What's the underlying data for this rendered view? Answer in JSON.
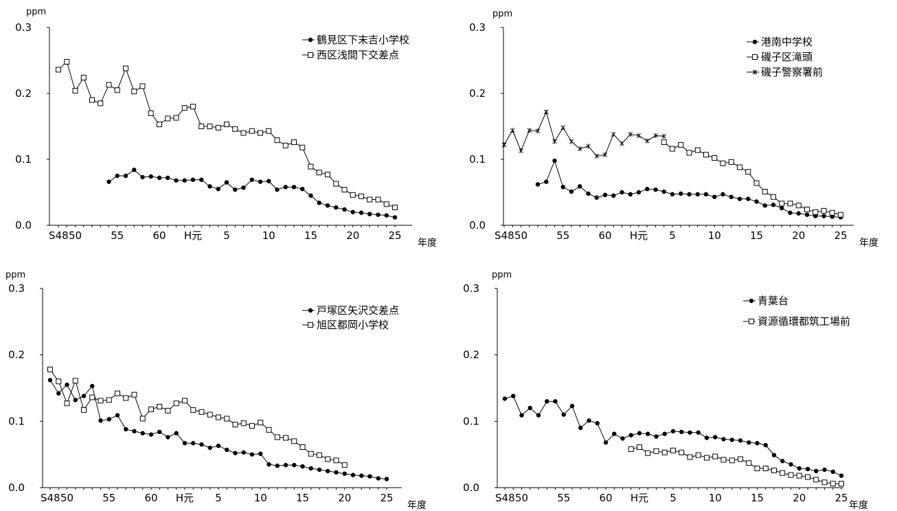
{
  "chart_data": [
    {
      "type": "line",
      "unit_label": "ppm",
      "x_unit_label": "年度",
      "ylim": [
        0,
        0.3
      ],
      "yticks": [
        "0.0",
        "0.1",
        "0.2",
        "0.3"
      ],
      "xticks": [
        {
          "x": 48,
          "label": "S48"
        },
        {
          "x": 50,
          "label": "50"
        },
        {
          "x": 55,
          "label": "55"
        },
        {
          "x": 60,
          "label": "60"
        },
        {
          "x": 64,
          "label": "H元"
        },
        {
          "x": 68,
          "label": "5"
        },
        {
          "x": 73,
          "label": "10"
        },
        {
          "x": 78,
          "label": "15"
        },
        {
          "x": 83,
          "label": "20"
        },
        {
          "x": 88,
          "label": "25"
        }
      ],
      "legend_position": "top-right",
      "series": [
        {
          "name": "鶴見区下末吉小学校",
          "marker": "filled-circle",
          "x": [
            54,
            55,
            56,
            57,
            58,
            59,
            60,
            61,
            62,
            63,
            64,
            65,
            66,
            67,
            68,
            69,
            70,
            71,
            72,
            73,
            74,
            75,
            76,
            77,
            78,
            79,
            80,
            81,
            82,
            83,
            84,
            85,
            86,
            87,
            88
          ],
          "y": [
            0.066,
            0.075,
            0.075,
            0.084,
            0.073,
            0.074,
            0.072,
            0.072,
            0.068,
            0.068,
            0.069,
            0.069,
            0.059,
            0.055,
            0.065,
            0.054,
            0.057,
            0.069,
            0.066,
            0.067,
            0.054,
            0.058,
            0.058,
            0.055,
            0.045,
            0.034,
            0.03,
            0.027,
            0.024,
            0.02,
            0.019,
            0.017,
            0.016,
            0.015,
            0.012
          ]
        },
        {
          "name": "西区浅間下交差点",
          "marker": "open-square",
          "x": [
            48,
            49,
            50,
            51,
            52,
            53,
            54,
            55,
            56,
            57,
            58,
            59,
            60,
            61,
            62,
            63,
            64,
            65,
            66,
            67,
            68,
            69,
            70,
            71,
            72,
            73,
            74,
            75,
            76,
            77,
            78,
            79,
            80,
            81,
            82,
            83,
            84,
            85,
            86,
            87,
            88
          ],
          "y": [
            0.236,
            0.248,
            0.204,
            0.224,
            0.19,
            0.185,
            0.213,
            0.205,
            0.238,
            0.203,
            0.211,
            0.17,
            0.153,
            0.162,
            0.163,
            0.178,
            0.18,
            0.15,
            0.15,
            0.148,
            0.153,
            0.146,
            0.14,
            0.143,
            0.14,
            0.143,
            0.129,
            0.121,
            0.126,
            0.118,
            0.089,
            0.08,
            0.077,
            0.063,
            0.054,
            0.046,
            0.044,
            0.039,
            0.039,
            0.032,
            0.027
          ]
        }
      ]
    },
    {
      "type": "line",
      "unit_label": "ppm",
      "x_unit_label": "年度",
      "ylim": [
        0,
        0.3
      ],
      "yticks": [
        "0.0",
        "0.1",
        "0.2",
        "0.3"
      ],
      "xticks": [
        {
          "x": 48,
          "label": "S48"
        },
        {
          "x": 50,
          "label": "50"
        },
        {
          "x": 55,
          "label": "55"
        },
        {
          "x": 60,
          "label": "60"
        },
        {
          "x": 64,
          "label": "H元"
        },
        {
          "x": 68,
          "label": "5"
        },
        {
          "x": 73,
          "label": "10"
        },
        {
          "x": 78,
          "label": "15"
        },
        {
          "x": 83,
          "label": "20"
        },
        {
          "x": 88,
          "label": "25"
        }
      ],
      "legend_position": "top-right",
      "series": [
        {
          "name": "港南中学校",
          "marker": "filled-circle",
          "x": [
            52,
            53,
            54,
            55,
            56,
            57,
            58,
            59,
            60,
            61,
            62,
            63,
            64,
            65,
            66,
            67,
            68,
            69,
            70,
            71,
            72,
            73,
            74,
            75,
            76,
            77,
            78,
            79,
            80,
            81,
            82,
            83,
            84,
            85,
            86,
            87,
            88
          ],
          "y": [
            0.062,
            0.066,
            0.098,
            0.058,
            0.051,
            0.059,
            0.048,
            0.042,
            0.046,
            0.045,
            0.05,
            0.047,
            0.05,
            0.055,
            0.054,
            0.051,
            0.047,
            0.048,
            0.047,
            0.047,
            0.047,
            0.043,
            0.047,
            0.043,
            0.04,
            0.04,
            0.036,
            0.03,
            0.031,
            0.026,
            0.019,
            0.018,
            0.016,
            0.014,
            0.014,
            0.013,
            0.012
          ]
        },
        {
          "name": "磯子区滝頭",
          "marker": "open-square",
          "x": [
            67,
            68,
            69,
            70,
            71,
            72,
            73,
            74,
            75,
            76,
            77,
            78,
            79,
            80,
            81,
            82,
            83,
            84,
            85,
            86,
            87,
            88
          ],
          "y": [
            0.126,
            0.116,
            0.122,
            0.11,
            0.114,
            0.107,
            0.102,
            0.094,
            0.096,
            0.088,
            0.081,
            0.064,
            0.051,
            0.043,
            0.033,
            0.033,
            0.03,
            0.024,
            0.02,
            0.022,
            0.019,
            0.016
          ]
        },
        {
          "name": "磯子警察署前",
          "marker": "asterisk",
          "x": [
            48,
            49,
            50,
            51,
            52,
            53,
            54,
            55,
            56,
            57,
            58,
            59,
            60,
            61,
            62,
            63,
            64,
            65,
            66,
            67
          ],
          "y": [
            0.122,
            0.144,
            0.113,
            0.144,
            0.143,
            0.172,
            0.127,
            0.148,
            0.127,
            0.116,
            0.12,
            0.105,
            0.107,
            0.138,
            0.124,
            0.138,
            0.136,
            0.128,
            0.136,
            0.135
          ]
        }
      ]
    },
    {
      "type": "line",
      "unit_label": "ppm",
      "x_unit_label": "年度",
      "ylim": [
        0,
        0.3
      ],
      "yticks": [
        "0.0",
        "0.1",
        "0.2",
        "0.3"
      ],
      "xticks": [
        {
          "x": 48,
          "label": "S48"
        },
        {
          "x": 50,
          "label": "50"
        },
        {
          "x": 55,
          "label": "55"
        },
        {
          "x": 60,
          "label": "60"
        },
        {
          "x": 64,
          "label": "H元"
        },
        {
          "x": 68,
          "label": "5"
        },
        {
          "x": 73,
          "label": "10"
        },
        {
          "x": 78,
          "label": "15"
        },
        {
          "x": 83,
          "label": "20"
        },
        {
          "x": 88,
          "label": "25"
        }
      ],
      "legend_position": "top-right",
      "series": [
        {
          "name": "戸塚区矢沢交差点",
          "marker": "filled-circle",
          "x": [
            48,
            49,
            50,
            51,
            52,
            53,
            54,
            55,
            56,
            57,
            58,
            59,
            60,
            61,
            62,
            63,
            64,
            65,
            66,
            67,
            68,
            69,
            70,
            71,
            72,
            73,
            74,
            75,
            76,
            77,
            78,
            79,
            80,
            81,
            82,
            83,
            84,
            85,
            86,
            87,
            88
          ],
          "y": [
            0.162,
            0.142,
            0.155,
            0.132,
            0.138,
            0.153,
            0.101,
            0.103,
            0.109,
            0.088,
            0.085,
            0.082,
            0.08,
            0.084,
            0.076,
            0.082,
            0.067,
            0.067,
            0.065,
            0.06,
            0.063,
            0.057,
            0.052,
            0.053,
            0.05,
            0.051,
            0.035,
            0.033,
            0.034,
            0.034,
            0.032,
            0.029,
            0.027,
            0.025,
            0.023,
            0.021,
            0.019,
            0.018,
            0.017,
            0.014,
            0.013
          ]
        },
        {
          "name": "旭区都岡小学校",
          "marker": "open-square",
          "x": [
            48,
            49,
            50,
            51,
            52,
            53,
            54,
            55,
            56,
            57,
            58,
            59,
            60,
            61,
            62,
            63,
            64,
            65,
            66,
            67,
            68,
            69,
            70,
            71,
            72,
            73,
            74,
            75,
            76,
            77,
            78,
            79,
            80,
            81,
            82,
            83
          ],
          "y": [
            0.178,
            0.16,
            0.127,
            0.161,
            0.117,
            0.136,
            0.131,
            0.132,
            0.142,
            0.135,
            0.14,
            0.104,
            0.118,
            0.122,
            0.116,
            0.127,
            0.131,
            0.117,
            0.114,
            0.11,
            0.106,
            0.104,
            0.095,
            0.097,
            0.093,
            0.098,
            0.087,
            0.076,
            0.075,
            0.07,
            0.061,
            0.051,
            0.049,
            0.043,
            0.041,
            0.034
          ]
        }
      ]
    },
    {
      "type": "line",
      "unit_label": "ppm",
      "x_unit_label": "年度",
      "ylim": [
        0,
        0.3
      ],
      "yticks": [
        "0.0",
        "0.1",
        "0.2",
        "0.3"
      ],
      "xticks": [
        {
          "x": 48,
          "label": "S48"
        },
        {
          "x": 50,
          "label": "50"
        },
        {
          "x": 55,
          "label": "55"
        },
        {
          "x": 60,
          "label": "60"
        },
        {
          "x": 64,
          "label": "H元"
        },
        {
          "x": 68,
          "label": "5"
        },
        {
          "x": 73,
          "label": "10"
        },
        {
          "x": 78,
          "label": "15"
        },
        {
          "x": 83,
          "label": "20"
        },
        {
          "x": 88,
          "label": "25"
        }
      ],
      "legend_position": "top-right",
      "series": [
        {
          "name": "青葉台",
          "marker": "filled-circle",
          "x": [
            48,
            49,
            50,
            51,
            52,
            53,
            54,
            55,
            56,
            57,
            58,
            59,
            60,
            61,
            62,
            63,
            64,
            65,
            66,
            67,
            68,
            69,
            70,
            71,
            72,
            73,
            74,
            75,
            76,
            77,
            78,
            79,
            80,
            81,
            82,
            83,
            84,
            85,
            86,
            87,
            88
          ],
          "y": [
            0.134,
            0.138,
            0.109,
            0.12,
            0.109,
            0.13,
            0.13,
            0.11,
            0.123,
            0.09,
            0.101,
            0.097,
            0.068,
            0.081,
            0.074,
            0.079,
            0.082,
            0.081,
            0.077,
            0.081,
            0.085,
            0.084,
            0.083,
            0.083,
            0.075,
            0.076,
            0.073,
            0.072,
            0.071,
            0.068,
            0.067,
            0.064,
            0.049,
            0.04,
            0.035,
            0.029,
            0.028,
            0.025,
            0.027,
            0.024,
            0.018
          ]
        },
        {
          "name": "資源循環都筑工場前",
          "marker": "open-square",
          "x": [
            63,
            64,
            65,
            66,
            67,
            68,
            69,
            70,
            71,
            72,
            73,
            74,
            75,
            76,
            77,
            78,
            79,
            80,
            81,
            82,
            83,
            84,
            85,
            86,
            87,
            88
          ],
          "y": [
            0.058,
            0.061,
            0.052,
            0.055,
            0.053,
            0.056,
            0.053,
            0.046,
            0.049,
            0.045,
            0.047,
            0.042,
            0.041,
            0.043,
            0.037,
            0.029,
            0.029,
            0.026,
            0.022,
            0.019,
            0.018,
            0.016,
            0.012,
            0.008,
            0.006,
            0.006
          ]
        }
      ]
    }
  ]
}
